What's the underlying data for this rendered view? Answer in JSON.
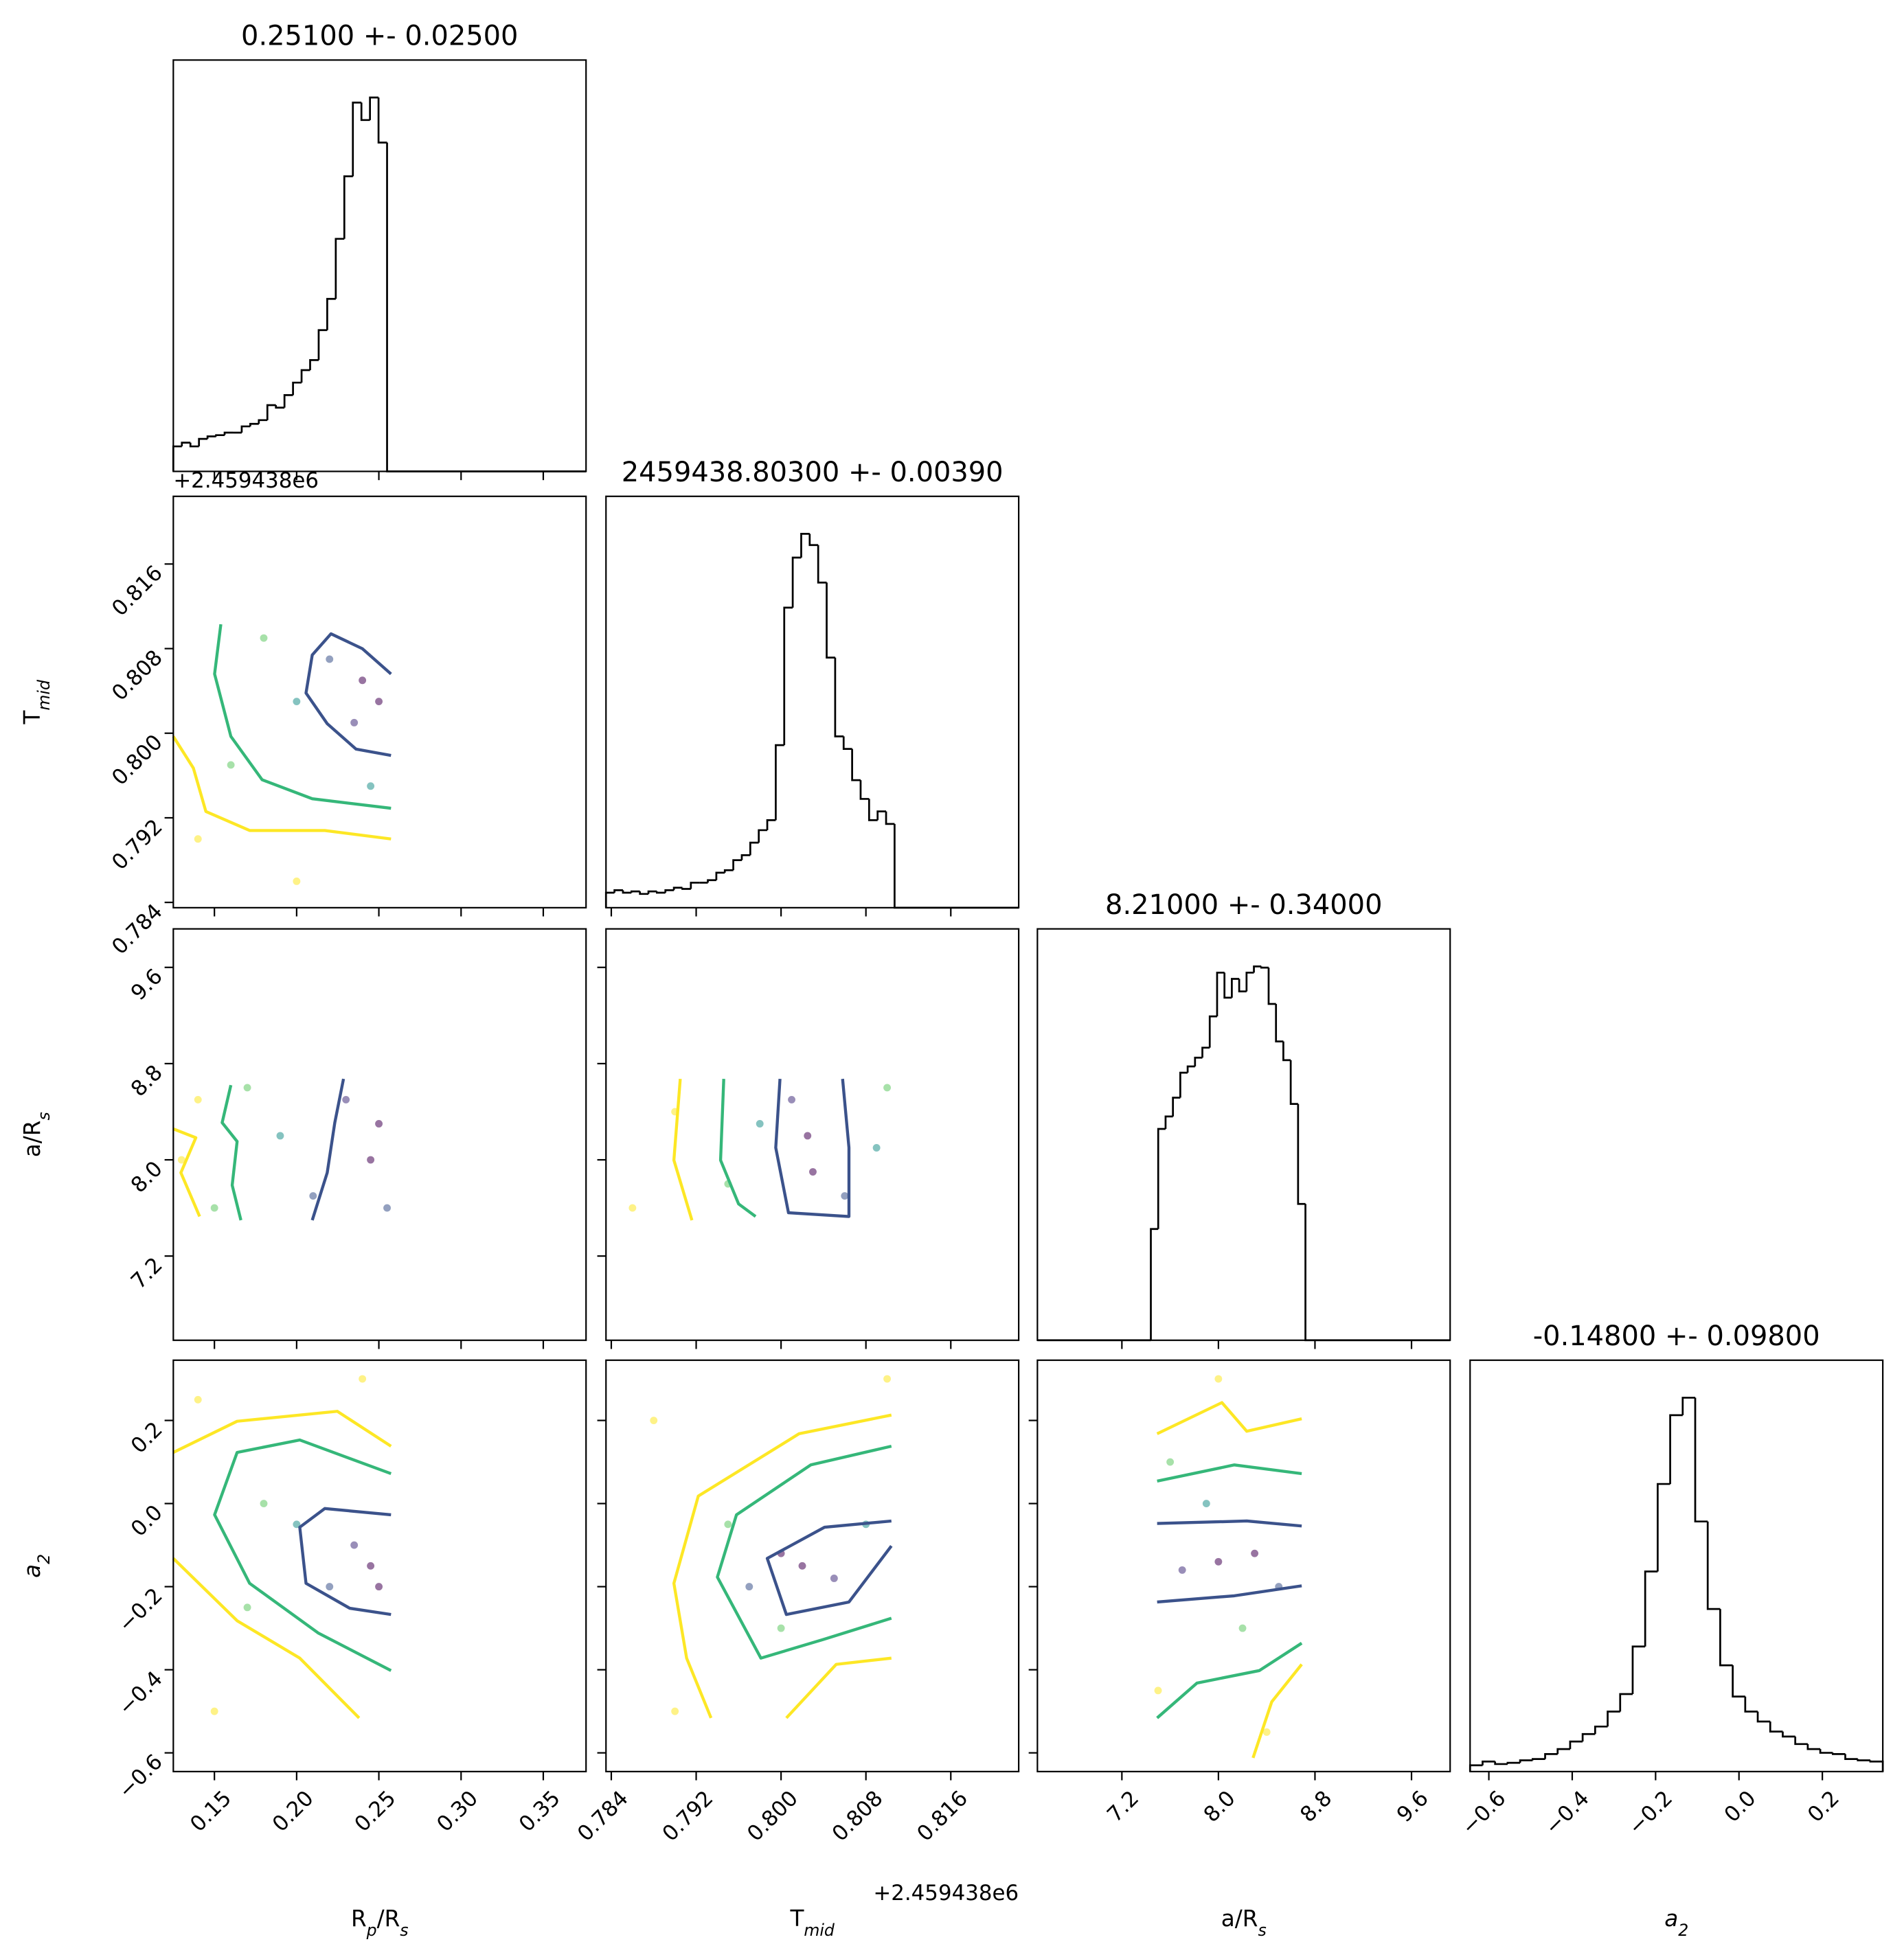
{
  "chart_data": {
    "type": "corner",
    "contour_colors": [
      "#fde725",
      "#35b779",
      "#3b528b"
    ],
    "hist_color": "#000000",
    "variables": [
      {
        "label": [
          "R",
          "p",
          "/R",
          "s"
        ],
        "italic": false,
        "lim": [
          0.125,
          0.376
        ],
        "ticks": [
          {
            "value": 0.15,
            "label": "0.15"
          },
          {
            "value": 0.2,
            "label": "0.20"
          },
          {
            "value": 0.25,
            "label": "0.25"
          },
          {
            "value": 0.3,
            "label": "0.30"
          },
          {
            "value": 0.35,
            "label": "0.35"
          }
        ]
      },
      {
        "label": [
          "T",
          "mid"
        ],
        "italic": false,
        "lim": [
          0.7835,
          0.8224
        ],
        "offset_label": "+2.459438e6",
        "ticks": [
          0.784,
          0.792,
          {
            "value": 0.8,
            "label": "0.800"
          },
          0.808,
          0.816
        ]
      },
      {
        "label": [
          "a/R",
          "s"
        ],
        "italic": false,
        "lim": [
          6.5,
          9.92
        ],
        "ticks": [
          7.2,
          {
            "value": 8.0,
            "label": "8.0"
          },
          8.8,
          9.6
        ]
      },
      {
        "label": [
          "a",
          "2"
        ],
        "italic": true,
        "lim": [
          -0.645,
          0.345
        ],
        "ticks": [
          {
            "value": -0.6,
            "label": "−0.6"
          },
          {
            "value": -0.4,
            "label": "−0.4"
          },
          {
            "value": -0.2,
            "label": "−0.2"
          },
          {
            "value": 0.0,
            "label": "0.0"
          },
          {
            "value": 0.2,
            "label": "0.2"
          }
        ]
      }
    ],
    "histograms": [
      {
        "title": "0.25100 +- 0.02500",
        "ylim": [
          0,
          329
        ],
        "bins": [
          0.125,
          0.1302,
          0.1354,
          0.1406,
          0.1458,
          0.151,
          0.1562,
          0.1614,
          0.1666,
          0.1718,
          0.177,
          0.1822,
          0.1874,
          0.1926,
          0.1978,
          0.203,
          0.2082,
          0.2134,
          0.2186,
          0.2238,
          0.229,
          0.2342,
          0.2394,
          0.2446,
          0.2498,
          0.255,
          0.376
        ],
        "counts": [
          20,
          23,
          20,
          26,
          28,
          29,
          31,
          31,
          36,
          38,
          41,
          53,
          51,
          61,
          71,
          81,
          89,
          113,
          138,
          186,
          236,
          295,
          281,
          299,
          263,
          0
        ]
      },
      {
        "title": "2459438.80300 +- 0.00390",
        "ylim": [
          0,
          329
        ],
        "bins": [
          0.7835,
          0.7843,
          0.7851,
          0.7859,
          0.7867,
          0.7875,
          0.7883,
          0.7891,
          0.7899,
          0.7907,
          0.7915,
          0.7923,
          0.7931,
          0.7939,
          0.7947,
          0.7955,
          0.7963,
          0.7971,
          0.7979,
          0.7987,
          0.7995,
          0.8003,
          0.8011,
          0.8019,
          0.8027,
          0.8035,
          0.8043,
          0.8051,
          0.8059,
          0.8067,
          0.8075,
          0.8083,
          0.8091,
          0.8099,
          0.8107,
          0.8224
        ],
        "counts": [
          12,
          14,
          12,
          13,
          11,
          13,
          12,
          14,
          16,
          15,
          20,
          20,
          22,
          28,
          30,
          38,
          42,
          52,
          62,
          70,
          130,
          240,
          280,
          299,
          290,
          260,
          200,
          137,
          127,
          102,
          87,
          70,
          77,
          67,
          0
        ]
      },
      {
        "title": "8.21000 +- 0.34000",
        "ylim": [
          0,
          329
        ],
        "bins": [
          6.5,
          7.44,
          7.501,
          7.562,
          7.623,
          7.684,
          7.745,
          7.806,
          7.867,
          7.928,
          7.989,
          8.05,
          8.111,
          8.172,
          8.233,
          8.294,
          8.355,
          8.416,
          8.477,
          8.538,
          8.599,
          8.66,
          8.721,
          9.92
        ],
        "counts": [
          0,
          89,
          169,
          179,
          194,
          214,
          219,
          226,
          234,
          259,
          294,
          274,
          289,
          279,
          294,
          299,
          298,
          269,
          239,
          224,
          189,
          109,
          0
        ]
      },
      {
        "title": "-0.14800 +- 0.09800",
        "ylim": [
          0,
          329
        ],
        "bins": [
          -0.645,
          -0.615,
          -0.585,
          -0.555,
          -0.525,
          -0.495,
          -0.465,
          -0.435,
          -0.405,
          -0.375,
          -0.345,
          -0.315,
          -0.285,
          -0.255,
          -0.225,
          -0.195,
          -0.165,
          -0.135,
          -0.105,
          -0.075,
          -0.045,
          -0.015,
          0.015,
          0.045,
          0.075,
          0.105,
          0.135,
          0.165,
          0.195,
          0.225,
          0.255,
          0.285,
          0.315,
          0.345
        ],
        "counts": [
          5,
          8,
          6,
          7,
          9,
          10,
          14,
          18,
          24,
          30,
          36,
          48,
          62,
          100,
          160,
          230,
          285,
          299,
          200,
          130,
          85,
          60,
          48,
          40,
          32,
          28,
          22,
          18,
          15,
          14,
          10,
          9,
          8
        ]
      }
    ],
    "pairs": [
      [
        {
          "contours": [
            {
              "x": [
                0.125,
                0.1372,
                0.1448,
                0.1714,
                0.2171,
                0.2574
              ],
              "y": [
                0.7997,
                0.7967,
                0.7926,
                0.7908,
                0.7908,
                0.79
              ]
            },
            {
              "x": [
                0.1539,
                0.1501,
                0.16,
                0.179,
                0.2095,
                0.2574
              ],
              "y": [
                0.8103,
                0.8056,
                0.7997,
                0.7956,
                0.7938,
                0.7929
              ]
            },
            {
              "x": [
                0.2574,
                0.2399,
                0.2209,
                0.2095,
                0.2057,
                0.2186,
                0.2361,
                0.2574
              ],
              "y": [
                0.8056,
                0.808,
                0.8094,
                0.8074,
                0.8038,
                0.8009,
                0.7985,
                0.7979
              ]
            }
          ],
          "points": {
            "x": [
              0.25,
              0.24,
              0.235,
              0.22,
              0.2,
              0.18,
              0.16,
              0.14,
              0.2,
              0.245
            ],
            "y": [
              0.803,
              0.805,
              0.801,
              0.807,
              0.803,
              0.809,
              0.797,
              0.79,
              0.786,
              0.795
            ],
            "colors": [
              "#440154",
              "#440154",
              "#46327e",
              "#3b528b",
              "#21918c",
              "#5ec962",
              "#5ec962",
              "#fde725",
              "#fde725",
              "#21918c"
            ]
          }
        }
      ],
      [
        {
          "contours": [
            {
              "x": [
                0.125,
                0.1387,
                0.1296,
                0.141
              ],
              "y": [
                8.257,
                8.184,
                7.893,
                7.529
              ]
            },
            {
              "x": [
                0.16,
                0.1547,
                0.1638,
                0.1608,
                0.1661
              ],
              "y": [
                8.621,
                8.309,
                8.153,
                7.789,
                7.498
              ]
            },
            {
              "x": [
                0.2285,
                0.2232,
                0.2186,
                0.2095
              ],
              "y": [
                8.673,
                8.309,
                7.893,
                7.498
              ]
            }
          ],
          "points": {
            "x": [
              0.25,
              0.245,
              0.23,
              0.21,
              0.19,
              0.17,
              0.15,
              0.13,
              0.14,
              0.255
            ],
            "y": [
              8.3,
              8.0,
              8.5,
              7.7,
              8.2,
              8.6,
              7.6,
              8.0,
              8.5,
              7.6
            ],
            "colors": [
              "#440154",
              "#440154",
              "#46327e",
              "#3b528b",
              "#21918c",
              "#5ec962",
              "#5ec962",
              "#fde725",
              "#fde725",
              "#3b528b"
            ]
          }
        },
        {
          "contours": [
            {
              "x": [
                0.7905,
                0.7899,
                0.7916
              ],
              "y": [
                8.673,
                7.997,
                7.498
              ]
            },
            {
              "x": [
                0.7946,
                0.7943,
                0.796,
                0.7976
              ],
              "y": [
                8.673,
                7.997,
                7.633,
                7.529
              ]
            },
            {
              "x": [
                0.7999,
                0.7995,
                0.8007,
                0.8064,
                0.8064,
                0.8058
              ],
              "y": [
                8.673,
                8.101,
                7.56,
                7.529,
                8.101,
                8.673
              ]
            }
          ],
          "points": {
            "x": [
              0.8025,
              0.803,
              0.801,
              0.806,
              0.798,
              0.809,
              0.795,
              0.79,
              0.786,
              0.81
            ],
            "y": [
              8.2,
              7.9,
              8.5,
              7.7,
              8.3,
              8.1,
              7.8,
              8.4,
              7.6,
              8.6
            ],
            "colors": [
              "#440154",
              "#440154",
              "#46327e",
              "#3b528b",
              "#21918c",
              "#21918c",
              "#5ec962",
              "#fde725",
              "#fde725",
              "#5ec962"
            ]
          }
        }
      ],
      [
        {
          "contours": [
            {
              "x": [
                0.125,
                0.1638,
                0.2247,
                0.2574,
                null,
                0.125,
                0.1638,
                0.2019,
                0.238
              ],
              "y": [
                0.123,
                0.198,
                0.222,
                0.138,
                null,
                -0.132,
                -0.282,
                -0.372,
                -0.516
              ]
            },
            {
              "x": [
                0.2574,
                0.2019,
                0.1638,
                0.1501,
                0.1714,
                0.2133,
                0.2574
              ],
              "y": [
                0.072,
                0.153,
                0.123,
                -0.027,
                -0.192,
                -0.312,
                -0.402
              ]
            },
            {
              "x": [
                0.2574,
                0.2171,
                0.2019,
                0.2057,
                0.2323,
                0.2574
              ],
              "y": [
                -0.027,
                -0.012,
                -0.057,
                -0.192,
                -0.252,
                -0.267
              ]
            }
          ],
          "points": {
            "x": [
              0.245,
              0.25,
              0.235,
              0.22,
              0.2,
              0.18,
              0.17,
              0.14,
              0.15,
              0.24
            ],
            "y": [
              -0.15,
              -0.2,
              -0.1,
              -0.2,
              -0.05,
              0.0,
              -0.25,
              0.25,
              -0.5,
              0.3
            ],
            "colors": [
              "#440154",
              "#440154",
              "#46327e",
              "#3b528b",
              "#21918c",
              "#5ec962",
              "#5ec962",
              "#fde725",
              "#fde725",
              "#fde725"
            ]
          }
        },
        {
          "contours": [
            {
              "x": [
                0.8104,
                0.8017,
                0.7922,
                0.7899,
                0.7911,
                0.7934,
                null,
                0.8005,
                0.8052,
                0.8104
              ],
              "y": [
                0.213,
                0.168,
                0.018,
                -0.192,
                -0.372,
                -0.516,
                null,
                -0.516,
                -0.387,
                -0.372
              ]
            },
            {
              "x": [
                0.8104,
                0.8028,
                0.7958,
                0.794,
                0.7981,
                0.804,
                0.8104
              ],
              "y": [
                0.138,
                0.093,
                -0.027,
                -0.177,
                -0.372,
                -0.327,
                -0.276
              ]
            },
            {
              "x": [
                0.8104,
                0.8041,
                0.7987,
                0.8005,
                0.8064,
                0.8104
              ],
              "y": [
                -0.042,
                -0.057,
                -0.132,
                -0.267,
                -0.237,
                -0.102
              ]
            }
          ],
          "points": {
            "x": [
              0.802,
              0.8,
              0.805,
              0.797,
              0.808,
              0.795,
              0.8,
              0.788,
              0.79,
              0.81
            ],
            "y": [
              -0.15,
              -0.12,
              -0.18,
              -0.2,
              -0.05,
              -0.05,
              -0.3,
              0.2,
              -0.5,
              0.3
            ],
            "colors": [
              "#440154",
              "#440154",
              "#46327e",
              "#3b528b",
              "#21918c",
              "#5ec962",
              "#5ec962",
              "#fde725",
              "#fde725",
              "#fde725"
            ]
          }
        },
        {
          "contours": [
            {
              "x": [
                7.492,
                8.029,
                8.235,
                8.69,
                null,
                8.287,
                8.442,
                8.69
              ],
              "y": [
                0.168,
                0.243,
                0.174,
                0.204,
                null,
                -0.612,
                -0.477,
                -0.387
              ]
            },
            {
              "x": [
                7.492,
                8.132,
                8.69,
                null,
                7.492,
                7.822,
                8.339,
                8.69
              ],
              "y": [
                0.054,
                0.093,
                0.072,
                null,
                -0.516,
                -0.432,
                -0.402,
                -0.336
              ]
            },
            {
              "x": [
                7.492,
                8.235,
                8.69,
                null,
                7.492,
                8.132,
                8.69
              ],
              "y": [
                -0.048,
                -0.042,
                -0.054,
                null,
                -0.237,
                -0.222,
                -0.198
              ]
            }
          ],
          "points": {
            "x": [
              8.0,
              8.3,
              7.7,
              8.5,
              7.9,
              8.2,
              7.6,
              8.0,
              8.4,
              7.5
            ],
            "y": [
              -0.14,
              -0.12,
              -0.16,
              -0.2,
              0.0,
              -0.3,
              0.1,
              0.3,
              -0.55,
              -0.45
            ],
            "colors": [
              "#440154",
              "#440154",
              "#46327e",
              "#3b528b",
              "#21918c",
              "#5ec962",
              "#5ec962",
              "#fde725",
              "#fde725",
              "#fde725"
            ]
          }
        }
      ]
    ]
  }
}
